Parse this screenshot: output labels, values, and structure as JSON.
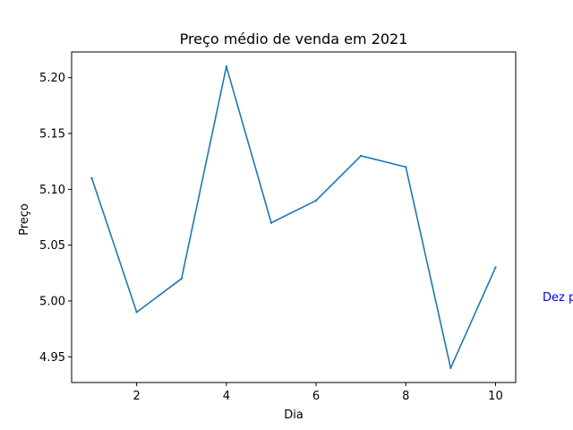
{
  "chart_data": {
    "type": "line",
    "title": "Preço médio de venda em 2021",
    "xlabel": "Dia",
    "ylabel": "Preço",
    "x": [
      1,
      2,
      3,
      4,
      5,
      6,
      7,
      8,
      9,
      10
    ],
    "series": [
      {
        "values": [
          5.11,
          4.99,
          5.02,
          5.21,
          5.07,
          5.09,
          5.13,
          5.12,
          4.94,
          5.03
        ]
      }
    ],
    "xlim": [
      0.55,
      10.45
    ],
    "ylim": [
      4.927,
      5.223
    ],
    "xticks": [
      2,
      4,
      6,
      8,
      10
    ],
    "xtick_labels": [
      "2",
      "4",
      "6",
      "8",
      "10"
    ],
    "yticks": [
      4.95,
      5.0,
      5.05,
      5.1,
      5.15,
      5.2
    ],
    "ytick_labels": [
      "4.95",
      "5.00",
      "5.05",
      "5.10",
      "5.15",
      "5.20"
    ],
    "annotation": {
      "text": "Dez p",
      "x": 11.05,
      "y": 5.0
    },
    "grid": false,
    "line_color": "#1f77b4",
    "annotation_color": "#0000ff"
  }
}
